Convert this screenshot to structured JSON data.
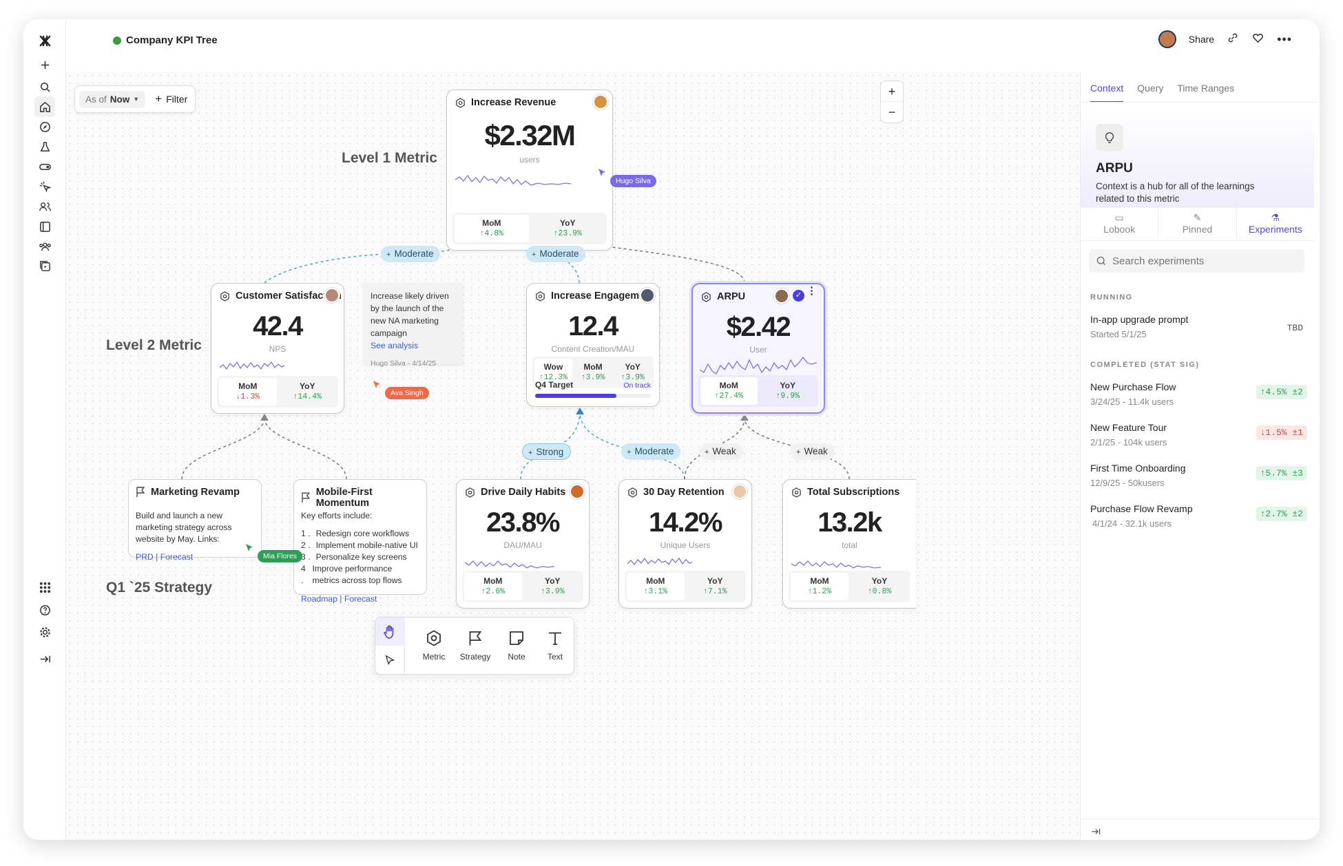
{
  "app": {
    "title": "Company KPI Tree",
    "share_label": "Share"
  },
  "toolbar": {
    "as_of_label": "As of",
    "as_of_value": "Now",
    "filter_label": "Filter"
  },
  "canvas_labels": {
    "level1": "Level 1 Metric",
    "level2": "Level 2 Metric",
    "strategy": "Q1 `25 Strategy"
  },
  "metrics": {
    "increase_revenue": {
      "title": "Increase Revenue",
      "value": "$2.32M",
      "unit": "users",
      "mom_label": "MoM",
      "mom": "↑4.8%",
      "yoy_label": "YoY",
      "yoy": "↑23.9%"
    },
    "customer_satisfaction": {
      "title": "Customer Satisfaction",
      "value": "42.4",
      "unit": "NPS",
      "mom_label": "MoM",
      "mom": "↓1.3%",
      "yoy_label": "YoY",
      "yoy": "↑14.4%"
    },
    "increase_engagement": {
      "title": "Increase Engagement",
      "value": "12.4",
      "unit": "Content Creation/MAU",
      "wow_label": "Wow",
      "wow": "↑12.3%",
      "mom_label": "MoM",
      "mom": "↑3.9%",
      "yoy_label": "YoY",
      "yoy": "↑3.9%",
      "target_label": "Q4 Target",
      "target_status": "On track",
      "target_progress": 0.7
    },
    "arpu": {
      "title": "ARPU",
      "value": "$2.42",
      "unit": "User",
      "mom_label": "MoM",
      "mom": "↑27.4%",
      "yoy_label": "YoY",
      "yoy": "↑9.9%"
    },
    "drive_daily_habits": {
      "title": "Drive Daily Habits",
      "value": "23.8%",
      "unit": "DAU/MAU",
      "mom_label": "MoM",
      "mom": "↑2.6%",
      "yoy_label": "YoY",
      "yoy": "↑3.9%"
    },
    "day30_retention": {
      "title": "30 Day Retention",
      "value": "14.2%",
      "unit": "Unique Users",
      "mom_label": "MoM",
      "mom": "↑3.1%",
      "yoy_label": "YoY",
      "yoy": "↑7.1%"
    },
    "total_subscriptions": {
      "title": "Total Subscriptions",
      "value": "13.2k",
      "unit": "total",
      "mom_label": "MoM",
      "mom": "↑1.2%",
      "yoy_label": "YoY",
      "yoy": "↑0.8%"
    }
  },
  "note": {
    "text": "Increase likely driven by the launch of the new NA marketing campaign",
    "link": "See analysis",
    "footer": "Hugo Silva - 4/14/25"
  },
  "strategies": {
    "marketing": {
      "title": "Marketing Revamp",
      "body": "Build and launch a new marketing strategy across website by May. Links:",
      "link1": "PRD",
      "sep": " | ",
      "link2": "Forecast"
    },
    "mobile": {
      "title": "Mobile-First Momentum",
      "intro": "Key efforts include:",
      "items": [
        "Redesign core workflows",
        "Implement mobile-native UI",
        "Personalize key screens",
        "Improve performance metrics across top flows"
      ],
      "link1": "Roadmap",
      "sep": " | ",
      "link2": "Forecast"
    }
  },
  "edges": {
    "moderate": "Moderate",
    "strong": "Strong",
    "weak": "Weak"
  },
  "cursors": {
    "hugo": "Hugo Silva",
    "ava": "Ava Singh",
    "mia": "Mia Flores"
  },
  "bottom_tools": [
    {
      "label": "Metric"
    },
    {
      "label": "Strategy"
    },
    {
      "label": "Note"
    },
    {
      "label": "Text"
    }
  ],
  "panel": {
    "tabs": [
      "Context",
      "Query",
      "Time Ranges"
    ],
    "context_title": "ARPU",
    "context_desc": "Context is a hub for all of the learnings related to this metric",
    "subtabs": [
      "Lobook",
      "Pinned",
      "Experiments"
    ],
    "search_placeholder": "Search experiments",
    "running_label": "RUNNING",
    "running": [
      {
        "name": "In-app upgrade prompt",
        "meta": "Started 5/1/25",
        "badge": "TBD"
      }
    ],
    "completed_label": "COMPLETED (STAT SIG)",
    "completed": [
      {
        "name": "New Purchase Flow",
        "meta": "3/24/25 - 11.4k users",
        "badge": "↑4.5% ±2",
        "tone": "g"
      },
      {
        "name": "New Feature Tour",
        "meta": "2/1/25 - 104k users",
        "badge": "↓1.5% ±1",
        "tone": "r"
      },
      {
        "name": "First Time Onboarding",
        "meta": "12/9/25 - 50kusers",
        "badge": "↑5.7% ±3",
        "tone": "g"
      },
      {
        "name": "Purchase Flow Revamp",
        "meta": "4/1/24 - 32.1k users",
        "badge": "↑2.7% ±2",
        "tone": "g"
      }
    ]
  },
  "colors": {
    "accent": "#5048c9",
    "spark": "#7b73e6",
    "up": "#2f9e55",
    "down": "#d64040",
    "edge": "#4aa3cf"
  }
}
